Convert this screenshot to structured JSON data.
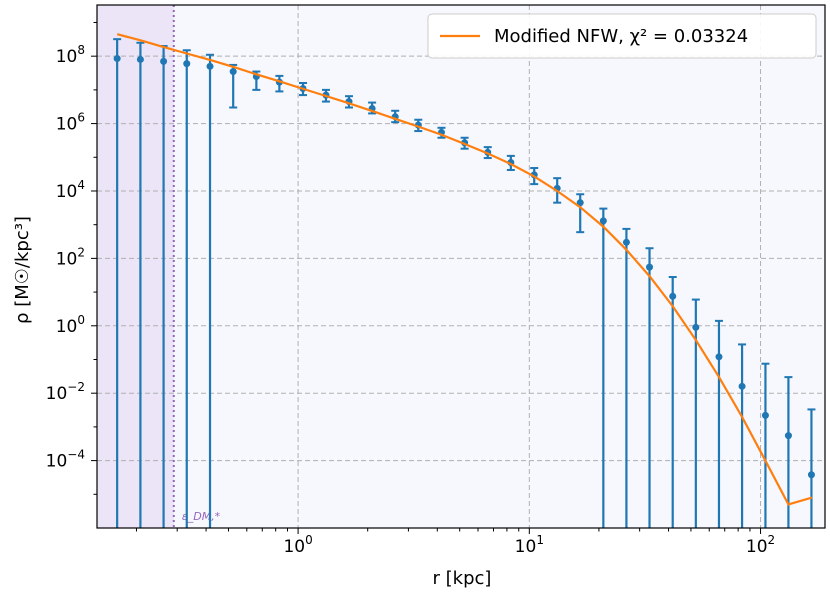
{
  "chart_data": {
    "type": "scatter",
    "xlabel": "r [kpc]",
    "ylabel": "ρ [M☉/kpc³]",
    "xscale": "log",
    "yscale": "log",
    "xlim": [
      0.135,
      190
    ],
    "ylim": [
      1e-06,
      3300000000.0
    ],
    "grid": true,
    "legend_position": "top-right",
    "x_ticks": [
      {
        "value": 1,
        "exp": "0"
      },
      {
        "value": 10,
        "exp": "1"
      },
      {
        "value": 100,
        "exp": "2"
      }
    ],
    "y_ticks": [
      {
        "value": 0.0001,
        "exp": "−4"
      },
      {
        "value": 0.01,
        "exp": "−2"
      },
      {
        "value": 1,
        "exp": "0"
      },
      {
        "value": 100.0,
        "exp": "2"
      },
      {
        "value": 10000.0,
        "exp": "4"
      },
      {
        "value": 1000000.0,
        "exp": "6"
      },
      {
        "value": 100000000.0,
        "exp": "8"
      }
    ],
    "shaded_region": {
      "x_from": 0.135,
      "x_to": 0.29,
      "color": "#ebe5f7"
    },
    "vline": {
      "x": 0.29,
      "label": "ε_DM,*",
      "color": "#9467bd"
    },
    "series": [
      {
        "name": "Modified NFW, χ² = 0.03324",
        "type": "line",
        "color": "#ff7f0e",
        "x": [
          0.165,
          0.21,
          0.26,
          0.33,
          0.42,
          0.53,
          0.66,
          0.83,
          1.04,
          1.32,
          1.66,
          2.08,
          2.62,
          3.3,
          4.16,
          5.24,
          6.6,
          8.32,
          10.5,
          13.2,
          16.6,
          20.9,
          26.3,
          33.2,
          41.8,
          52.6,
          66.3,
          83.5,
          105,
          132,
          167
        ],
        "y": [
          450000000.0,
          290000000.0,
          190000000.0,
          120000000.0,
          76000000.0,
          47000000.0,
          29000000.0,
          18000000.0,
          11000000.0,
          6600000.0,
          4000000.0,
          2400000.0,
          1400000.0,
          820000.0,
          470000.0,
          250000.0,
          130000.0,
          63000.0,
          27000.0,
          10000.0,
          3300.0,
          880.0,
          180.0,
          29.0,
          3.7,
          0.37,
          0.029,
          0.0019,
          0.0001,
          5e-06,
          8e-06
        ]
      },
      {
        "name": "",
        "type": "errorbar",
        "color": "#1f77b4",
        "x": [
          0.165,
          0.208,
          0.262,
          0.33,
          0.416,
          0.524,
          0.66,
          0.83,
          1.05,
          1.32,
          1.66,
          2.09,
          2.63,
          3.31,
          4.17,
          5.25,
          6.61,
          8.32,
          10.5,
          13.2,
          16.6,
          20.9,
          26.3,
          33.1,
          41.7,
          52.5,
          66.1,
          83.2,
          105,
          132,
          166
        ],
        "y": [
          85000000.0,
          80000000.0,
          70000000.0,
          60000000.0,
          50000000.0,
          35000000.0,
          25000000.0,
          17000000.0,
          11000000.0,
          7000000.0,
          4500000.0,
          2800000.0,
          1600000.0,
          900000.0,
          550000.0,
          270000.0,
          140000.0,
          70000.0,
          30000.0,
          12000.0,
          4500.0,
          1300.0,
          300.0,
          55.0,
          7.5,
          0.9,
          0.12,
          0.016,
          0.0022,
          0.00055,
          3.8e-05
        ],
        "y_low": [
          1e-06,
          1e-06,
          1e-06,
          1e-06,
          1e-06,
          3000000.0,
          10000000.0,
          9000000.0,
          7000000.0,
          4500000.0,
          3000000.0,
          2000000.0,
          1100000.0,
          600000.0,
          380000.0,
          180000.0,
          95000.0,
          42000.0,
          16000.0,
          4500.0,
          600.0,
          1e-06,
          1e-06,
          1e-06,
          1e-06,
          1e-06,
          1e-06,
          1e-06,
          1e-06,
          1e-06,
          1e-06
        ],
        "y_high": [
          320000000.0,
          250000000.0,
          200000000.0,
          150000000.0,
          110000000.0,
          55000000.0,
          35000000.0,
          26000000.0,
          16000000.0,
          10000000.0,
          6500000.0,
          4200000.0,
          2400000.0,
          1300000.0,
          750000.0,
          380000.0,
          200000.0,
          110000.0,
          48000.0,
          24000.0,
          8000.0,
          3000.0,
          750.0,
          200.0,
          28.0,
          6.0,
          1.4,
          0.28,
          0.075,
          0.03,
          0.0033
        ]
      }
    ]
  }
}
